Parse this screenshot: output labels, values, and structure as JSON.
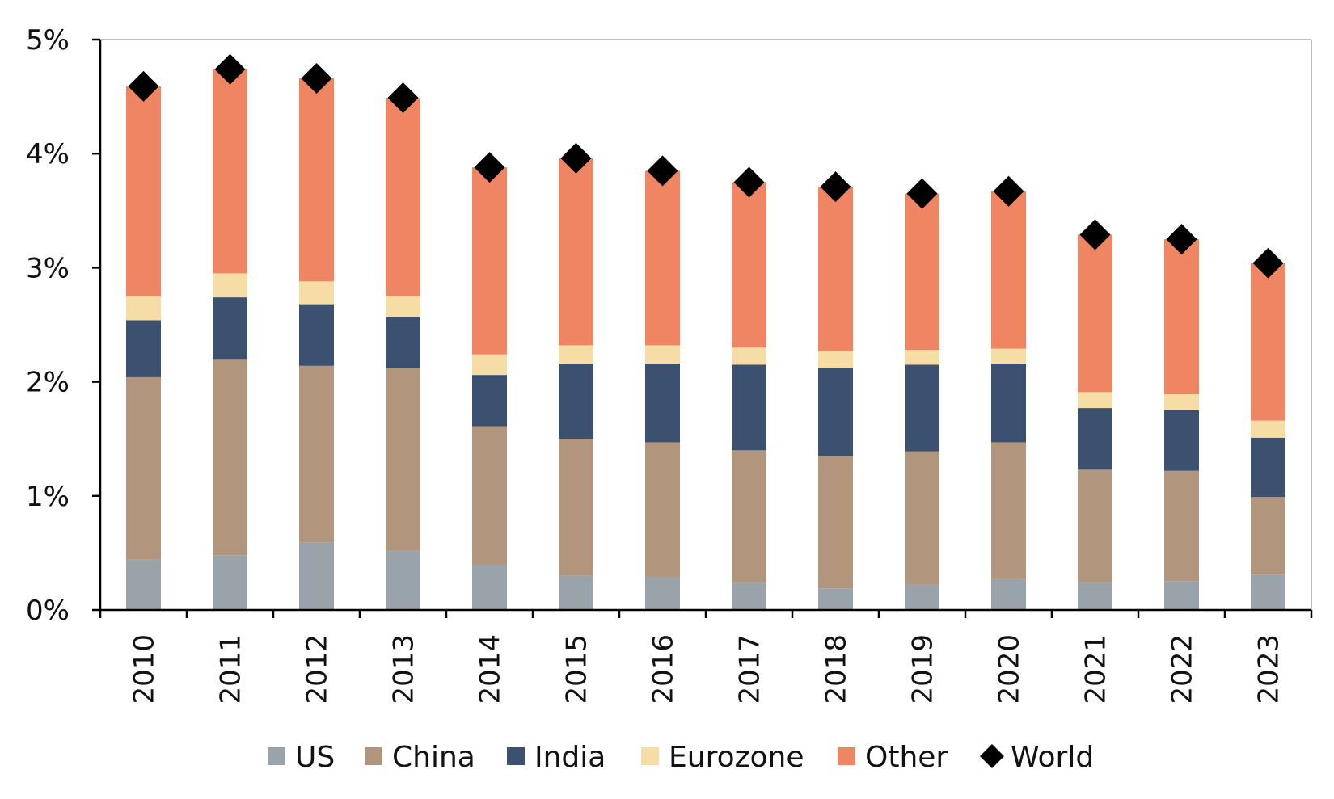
{
  "chart_data": {
    "type": "bar",
    "stacked": true,
    "title": "",
    "xlabel": "",
    "ylabel": "",
    "categories": [
      "2010",
      "2011",
      "2012",
      "2013",
      "2014",
      "2015",
      "2016",
      "2017",
      "2018",
      "2019",
      "2020",
      "2021",
      "2022",
      "2023"
    ],
    "ylim": [
      0,
      5
    ],
    "yticks": [
      0,
      1,
      2,
      3,
      4,
      5
    ],
    "ytick_labels": [
      "0%",
      "1%",
      "2%",
      "3%",
      "4%",
      "5%"
    ],
    "grid": false,
    "legend_position": "bottom",
    "series": [
      {
        "name": "US",
        "kind": "bar",
        "color": "#9aa2aa",
        "values": [
          0.44,
          0.48,
          0.59,
          0.52,
          0.4,
          0.3,
          0.29,
          0.24,
          0.19,
          0.22,
          0.27,
          0.24,
          0.25,
          0.31
        ]
      },
      {
        "name": "China",
        "kind": "bar",
        "color": "#b2957d",
        "values": [
          1.6,
          1.72,
          1.55,
          1.6,
          1.21,
          1.2,
          1.18,
          1.16,
          1.16,
          1.17,
          1.2,
          0.99,
          0.97,
          0.68
        ]
      },
      {
        "name": "India",
        "kind": "bar",
        "color": "#3c5070",
        "values": [
          0.5,
          0.54,
          0.54,
          0.45,
          0.45,
          0.66,
          0.69,
          0.75,
          0.77,
          0.76,
          0.69,
          0.54,
          0.53,
          0.52
        ]
      },
      {
        "name": "Eurozone",
        "kind": "bar",
        "color": "#f6dda6",
        "values": [
          0.21,
          0.21,
          0.2,
          0.18,
          0.18,
          0.16,
          0.16,
          0.15,
          0.15,
          0.13,
          0.13,
          0.14,
          0.14,
          0.15
        ]
      },
      {
        "name": "Other",
        "kind": "bar",
        "color": "#f08563",
        "values": [
          1.84,
          1.79,
          1.78,
          1.74,
          1.64,
          1.64,
          1.53,
          1.45,
          1.44,
          1.37,
          1.38,
          1.38,
          1.36,
          1.38
        ]
      },
      {
        "name": "World",
        "kind": "marker",
        "color": "#000000",
        "values": [
          4.59,
          4.74,
          4.66,
          4.49,
          3.88,
          3.96,
          3.85,
          3.75,
          3.71,
          3.65,
          3.67,
          3.29,
          3.25,
          3.04
        ]
      }
    ]
  }
}
